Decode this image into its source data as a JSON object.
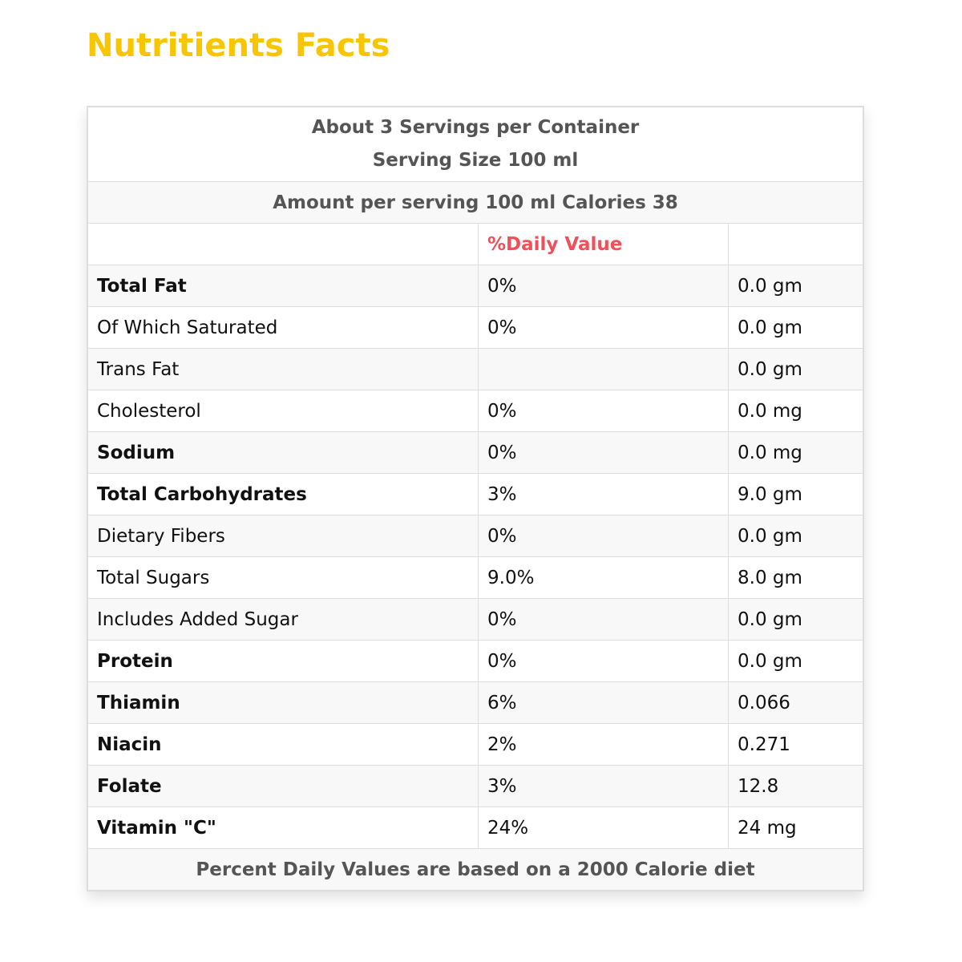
{
  "title": "Nutritients Facts",
  "header": {
    "servings": "About 3 Servings per Container",
    "serving_size": "Serving Size 100 ml",
    "amount": "Amount per serving 100 ml Calories 38",
    "daily_value_label": "%Daily Value"
  },
  "rows": [
    {
      "name": "Total Fat",
      "bold": true,
      "dv": "0%",
      "amount": "0.0 gm"
    },
    {
      "name": "Of Which Saturated",
      "bold": false,
      "dv": "0%",
      "amount": "0.0 gm"
    },
    {
      "name": "Trans Fat",
      "bold": false,
      "dv": "",
      "amount": "0.0 gm"
    },
    {
      "name": "Cholesterol",
      "bold": false,
      "dv": "0%",
      "amount": "0.0 mg"
    },
    {
      "name": "Sodium",
      "bold": true,
      "dv": "0%",
      "amount": "0.0 mg"
    },
    {
      "name": "Total Carbohydrates",
      "bold": true,
      "dv": "3%",
      "amount": "9.0 gm"
    },
    {
      "name": "Dietary Fibers",
      "bold": false,
      "dv": "0%",
      "amount": "0.0 gm"
    },
    {
      "name": "Total Sugars",
      "bold": false,
      "dv": "9.0%",
      "amount": "8.0 gm"
    },
    {
      "name": "Includes Added Sugar",
      "bold": false,
      "dv": "0%",
      "amount": "0.0 gm"
    },
    {
      "name": "Protein",
      "bold": true,
      "dv": "0%",
      "amount": "0.0 gm"
    },
    {
      "name": "Thiamin",
      "bold": true,
      "dv": "6%",
      "amount": "0.066"
    },
    {
      "name": "Niacin",
      "bold": true,
      "dv": "2%",
      "amount": "0.271"
    },
    {
      "name": "Folate",
      "bold": true,
      "dv": "3%",
      "amount": "12.8"
    },
    {
      "name": "Vitamin \"C\"",
      "bold": true,
      "dv": "24%",
      "amount": "24 mg"
    }
  ],
  "footer": "Percent Daily Values are based on a 2000 Calorie diet",
  "colors": {
    "title": "#f7c600",
    "daily_value": "#f0505a"
  }
}
